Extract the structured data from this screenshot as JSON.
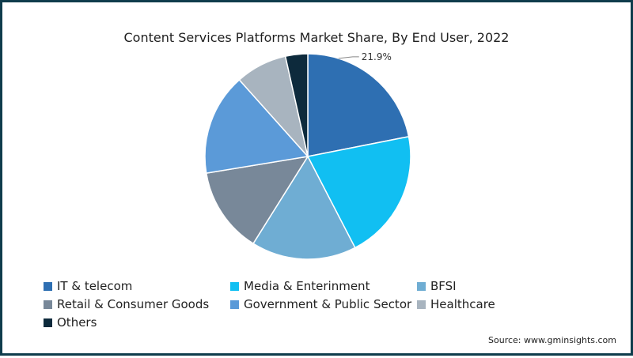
{
  "chart_data": {
    "type": "pie",
    "title": "Content Services Platforms Market Share, By End User, 2022",
    "slices": [
      {
        "label": "IT & telecom",
        "value": 21.9,
        "color": "#2e6fb2"
      },
      {
        "label": "Media & Enterinment",
        "value": 20.5,
        "color": "#11bff2"
      },
      {
        "label": "BFSI",
        "value": 16.5,
        "color": "#6fadd3"
      },
      {
        "label": "Retail & Consumer Goods",
        "value": 13.5,
        "color": "#788899"
      },
      {
        "label": "Government & Public Sector",
        "value": 16.0,
        "color": "#5b9ad8"
      },
      {
        "label": "Healthcare",
        "value": 8.1,
        "color": "#a8b4bf"
      },
      {
        "label": "Others",
        "value": 3.5,
        "color": "#0d2a3c"
      }
    ],
    "data_labels": [
      {
        "slice": "IT & telecom",
        "text": "21.9%"
      }
    ],
    "legend_placement": "bottom"
  },
  "source": "Source: www.gminsights.com"
}
